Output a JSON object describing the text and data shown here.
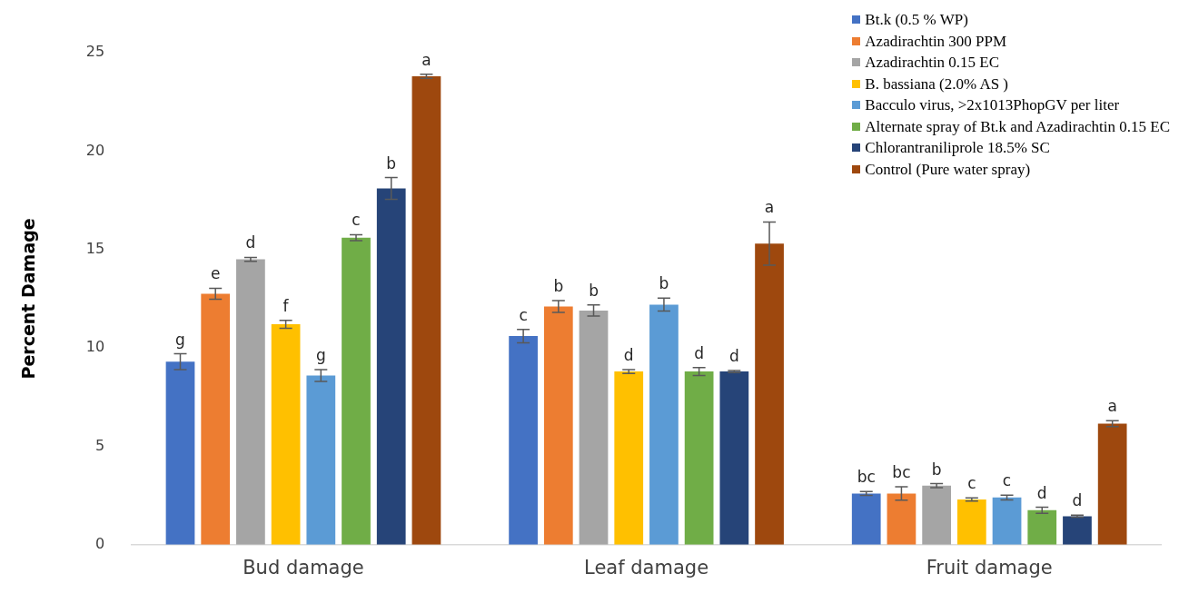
{
  "chart_data": {
    "type": "bar",
    "ylabel": "Percent Damage",
    "categories": [
      "Bud damage",
      "Leaf damage",
      "Fruit damage"
    ],
    "ylim": [
      0,
      25
    ],
    "yticks": [
      0,
      5,
      10,
      15,
      20,
      25
    ],
    "legend": "top right",
    "series": [
      {
        "name": "Bt.k (0.5 % WP)",
        "color": "#4472c4",
        "values": [
          9.3,
          10.6,
          2.6
        ],
        "errors": [
          0.4,
          0.34,
          0.1
        ],
        "value_labels": [
          "g",
          "c",
          "bc"
        ]
      },
      {
        "name": "Azadirachtin 300 PPM",
        "color": "#ed7d31",
        "values": [
          12.75,
          12.1,
          2.6
        ],
        "errors": [
          0.28,
          0.3,
          0.34
        ],
        "value_labels": [
          "e",
          "b",
          "bc"
        ]
      },
      {
        "name": "Azadirachtin 0.15 EC",
        "color": "#a5a5a5",
        "values": [
          14.5,
          11.9,
          3.0
        ],
        "errors": [
          0.1,
          0.28,
          0.1
        ],
        "value_labels": [
          "d",
          "b",
          "b"
        ]
      },
      {
        "name": "B. bassiana (2.0% AS )",
        "color": "#ffc000",
        "values": [
          11.2,
          8.8,
          2.3
        ],
        "errors": [
          0.2,
          0.1,
          0.08
        ],
        "value_labels": [
          "f",
          "d",
          "c"
        ]
      },
      {
        "name": "Bacculo virus, >2x1013PhopGV per liter",
        "color": "#5b9bd5",
        "values": [
          8.6,
          12.2,
          2.4
        ],
        "errors": [
          0.3,
          0.33,
          0.12
        ],
        "value_labels": [
          "g",
          "b",
          "c"
        ]
      },
      {
        "name": "Alternate spray of Bt.k and Azadirachtin 0.15 EC",
        "color": "#70ad47",
        "values": [
          15.6,
          8.8,
          1.75
        ],
        "errors": [
          0.15,
          0.2,
          0.15
        ],
        "value_labels": [
          "c",
          "d",
          "d"
        ]
      },
      {
        "name": "Chlorantraniliprole 18.5% SC",
        "color": "#264478",
        "values": [
          18.1,
          8.8,
          1.45
        ],
        "errors": [
          0.55,
          0.05,
          0.05
        ],
        "value_labels": [
          "b",
          "d",
          "d"
        ]
      },
      {
        "name": "Control (Pure water spray)",
        "color": "#9e480e",
        "values": [
          23.8,
          15.3,
          6.15
        ],
        "errors": [
          0.1,
          1.1,
          0.15
        ],
        "value_labels": [
          "a",
          "a",
          "a"
        ]
      }
    ]
  }
}
